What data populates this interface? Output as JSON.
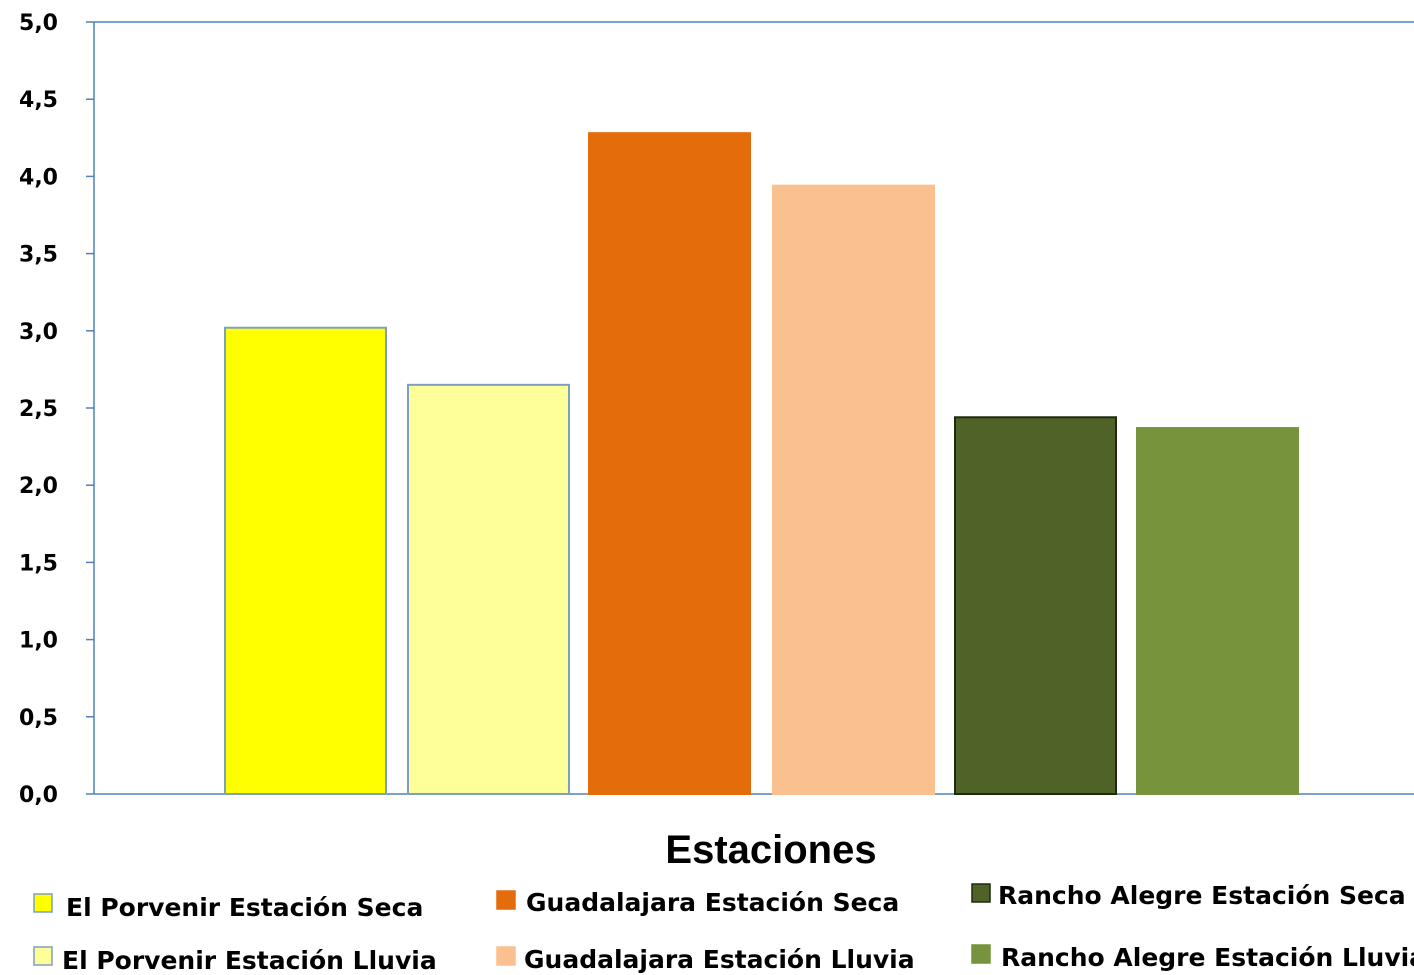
{
  "chart_data": {
    "type": "bar",
    "title": "",
    "xlabel": "Estaciones",
    "ylabel": "",
    "ylim": [
      0,
      5
    ],
    "y_ticks": [
      "0,0",
      "0,5",
      "1,0",
      "1,5",
      "2,0",
      "2,5",
      "3,0",
      "3,5",
      "4,0",
      "4,5",
      "5,0"
    ],
    "grid": false,
    "legend_position": "bottom",
    "series": [
      {
        "name": "El Porvenir Estación Seca",
        "value": 3.02,
        "color": "#ffff00",
        "border": "#7f9fbf"
      },
      {
        "name": "El Porvenir Estación Lluvia",
        "value": 2.65,
        "color": "#ffff99",
        "border": "#7f9fbf"
      },
      {
        "name": "Guadalajara Estación Seca",
        "value": 4.28,
        "color": "#e46c0a",
        "border": "#e46c0a"
      },
      {
        "name": "Guadalajara Estación Lluvia",
        "value": 3.94,
        "color": "#fac090",
        "border": "#fac090"
      },
      {
        "name": "Rancho Alegre Estación Seca",
        "value": 2.44,
        "color": "#4f6228",
        "border": "#1f2a10"
      },
      {
        "name": "Rancho Alegre Estación Lluvia",
        "value": 2.37,
        "color": "#77933c",
        "border": "#77933c"
      }
    ]
  }
}
